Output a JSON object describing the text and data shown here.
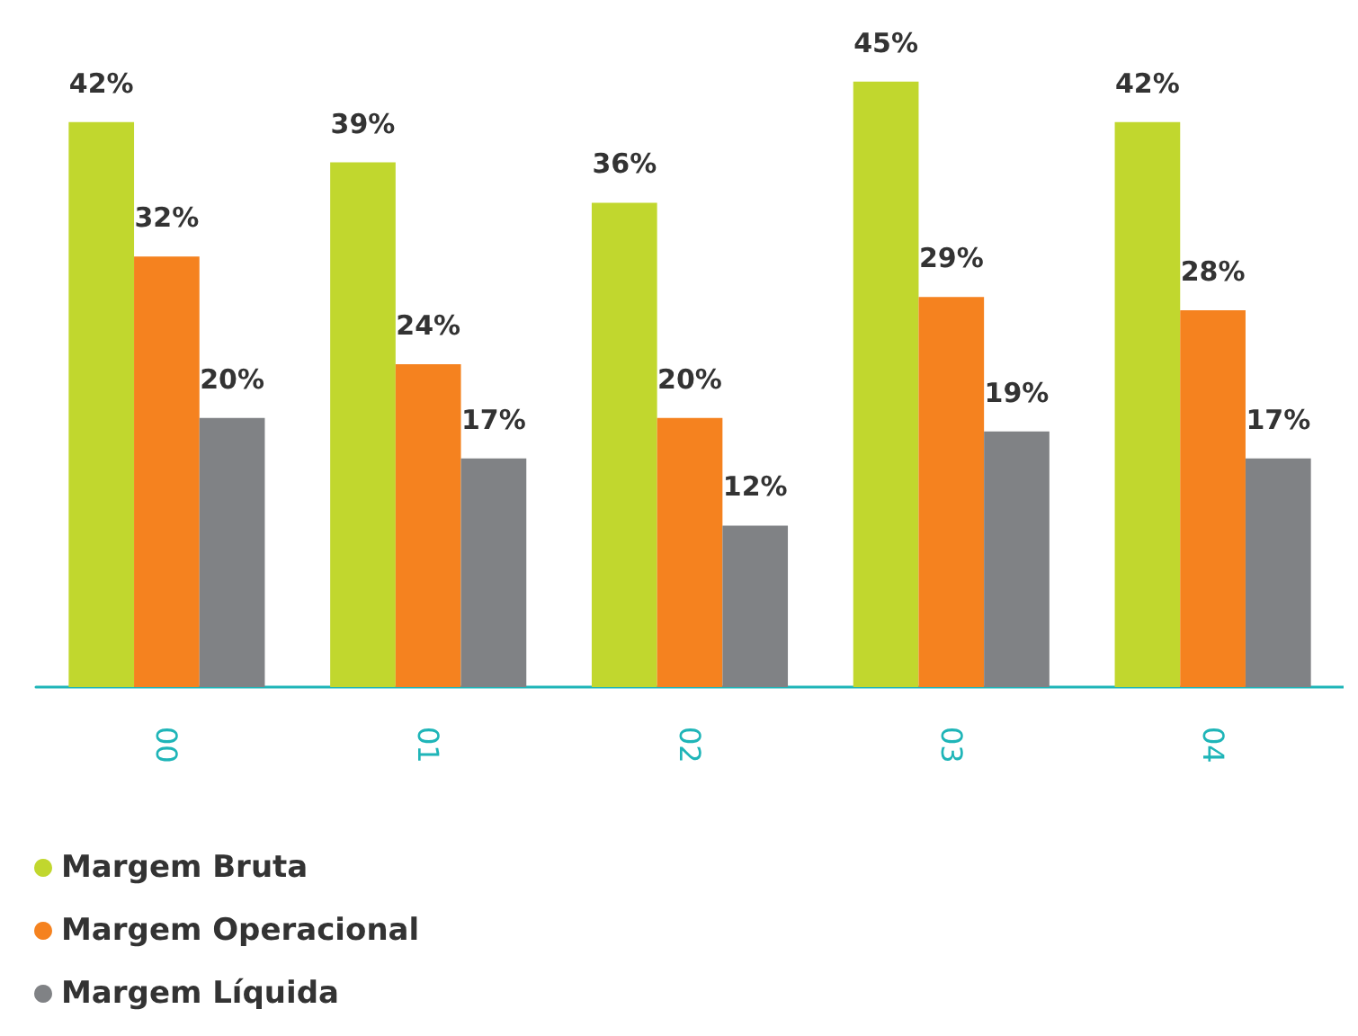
{
  "chart_data": {
    "type": "bar",
    "categories": [
      "00",
      "01",
      "02",
      "03",
      "04"
    ],
    "series": [
      {
        "name": "Margem Bruta",
        "color": "#c1d72e",
        "values": [
          42,
          39,
          36,
          45,
          42
        ],
        "value_labels": [
          "42%",
          "39%",
          "36%",
          "45%",
          "42%"
        ]
      },
      {
        "name": "Margem Operacional",
        "color": "#f5821f",
        "values": [
          32,
          24,
          20,
          29,
          28
        ],
        "value_labels": [
          "32%",
          "24%",
          "20%",
          "29%",
          "28%"
        ]
      },
      {
        "name": "Margem Líquida",
        "color": "#808285",
        "values": [
          20,
          17,
          12,
          19,
          17
        ],
        "value_labels": [
          "20%",
          "17%",
          "12%",
          "19%",
          "17%"
        ]
      }
    ],
    "legend": "bottom left",
    "grid": false
  }
}
